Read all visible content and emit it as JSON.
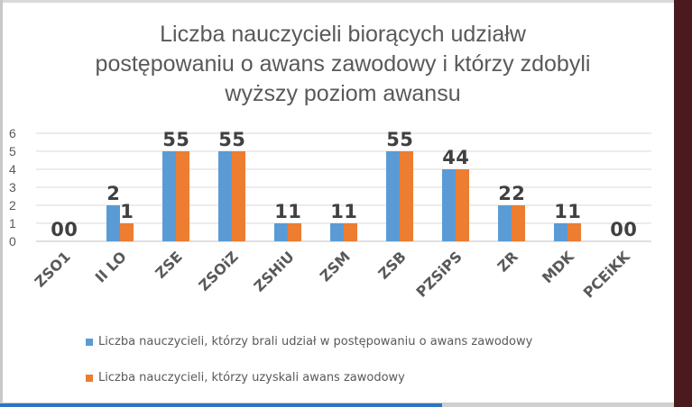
{
  "chart_data": {
    "type": "bar",
    "title_lines": [
      "Liczba nauczycieli biorących udziałw",
      "postępowaniu o awans zawodowy i którzy zdobyli",
      "wyższy poziom awansu"
    ],
    "categories": [
      "ZSO1",
      "II LO",
      "ZSE",
      "ZSOiZ",
      "ZSHiU",
      "ZSM",
      "ZSB",
      "PZSiPS",
      "ZR",
      "MDK",
      "PCEiKK"
    ],
    "series": [
      {
        "name": "Liczba nauczycieli, którzy brali udział w postępowaniu o awans zawodowy",
        "color": "#5b9bd5",
        "values": [
          0,
          2,
          5,
          5,
          1,
          1,
          5,
          4,
          2,
          1,
          0
        ]
      },
      {
        "name": "Liczba nauczycieli, którzy uzyskali awans zawodowy",
        "color": "#ed7d31",
        "values": [
          0,
          1,
          5,
          5,
          1,
          1,
          5,
          4,
          2,
          1,
          0
        ]
      }
    ],
    "ylim": [
      0,
      6
    ],
    "yticks": [
      0,
      1,
      2,
      3,
      4,
      5,
      6
    ],
    "grid": true,
    "legend_position": "bottom",
    "data_labels": true
  }
}
